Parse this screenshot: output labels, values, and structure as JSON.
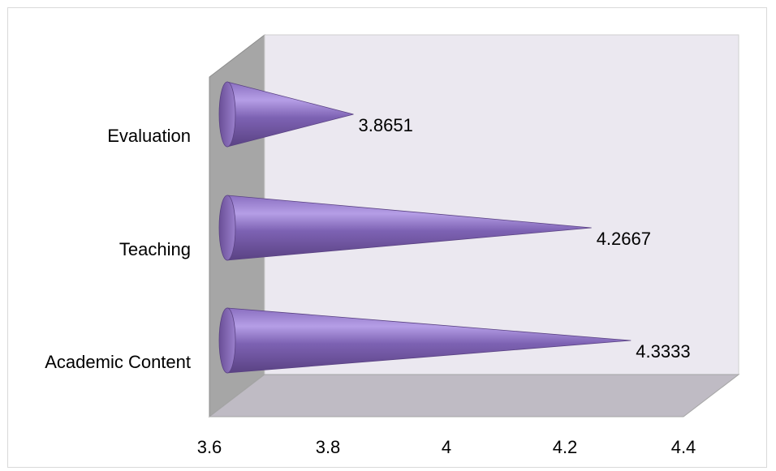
{
  "chart_data": {
    "type": "bar",
    "orientation": "horizontal",
    "style": "3d-cone",
    "categories": [
      "Academic Content",
      "Teaching",
      "Evaluation"
    ],
    "values": [
      4.3333,
      4.2667,
      3.8651
    ],
    "data_labels": [
      "4.3333",
      "4.2667",
      "3.8651"
    ],
    "xlim": [
      3.6,
      4.4
    ],
    "x_ticks": [
      "3.6",
      "3.8",
      "4",
      "4.2",
      "4.4"
    ],
    "title": "",
    "xlabel": "",
    "ylabel": "",
    "legend": "none",
    "grid": false,
    "colors": {
      "cone_dark": "#6b4f99",
      "cone_light": "#b59ee6",
      "back_wall": "#ebe8f0",
      "side_wall": "#a6a6a6",
      "floor": "#bfbbc4"
    }
  }
}
